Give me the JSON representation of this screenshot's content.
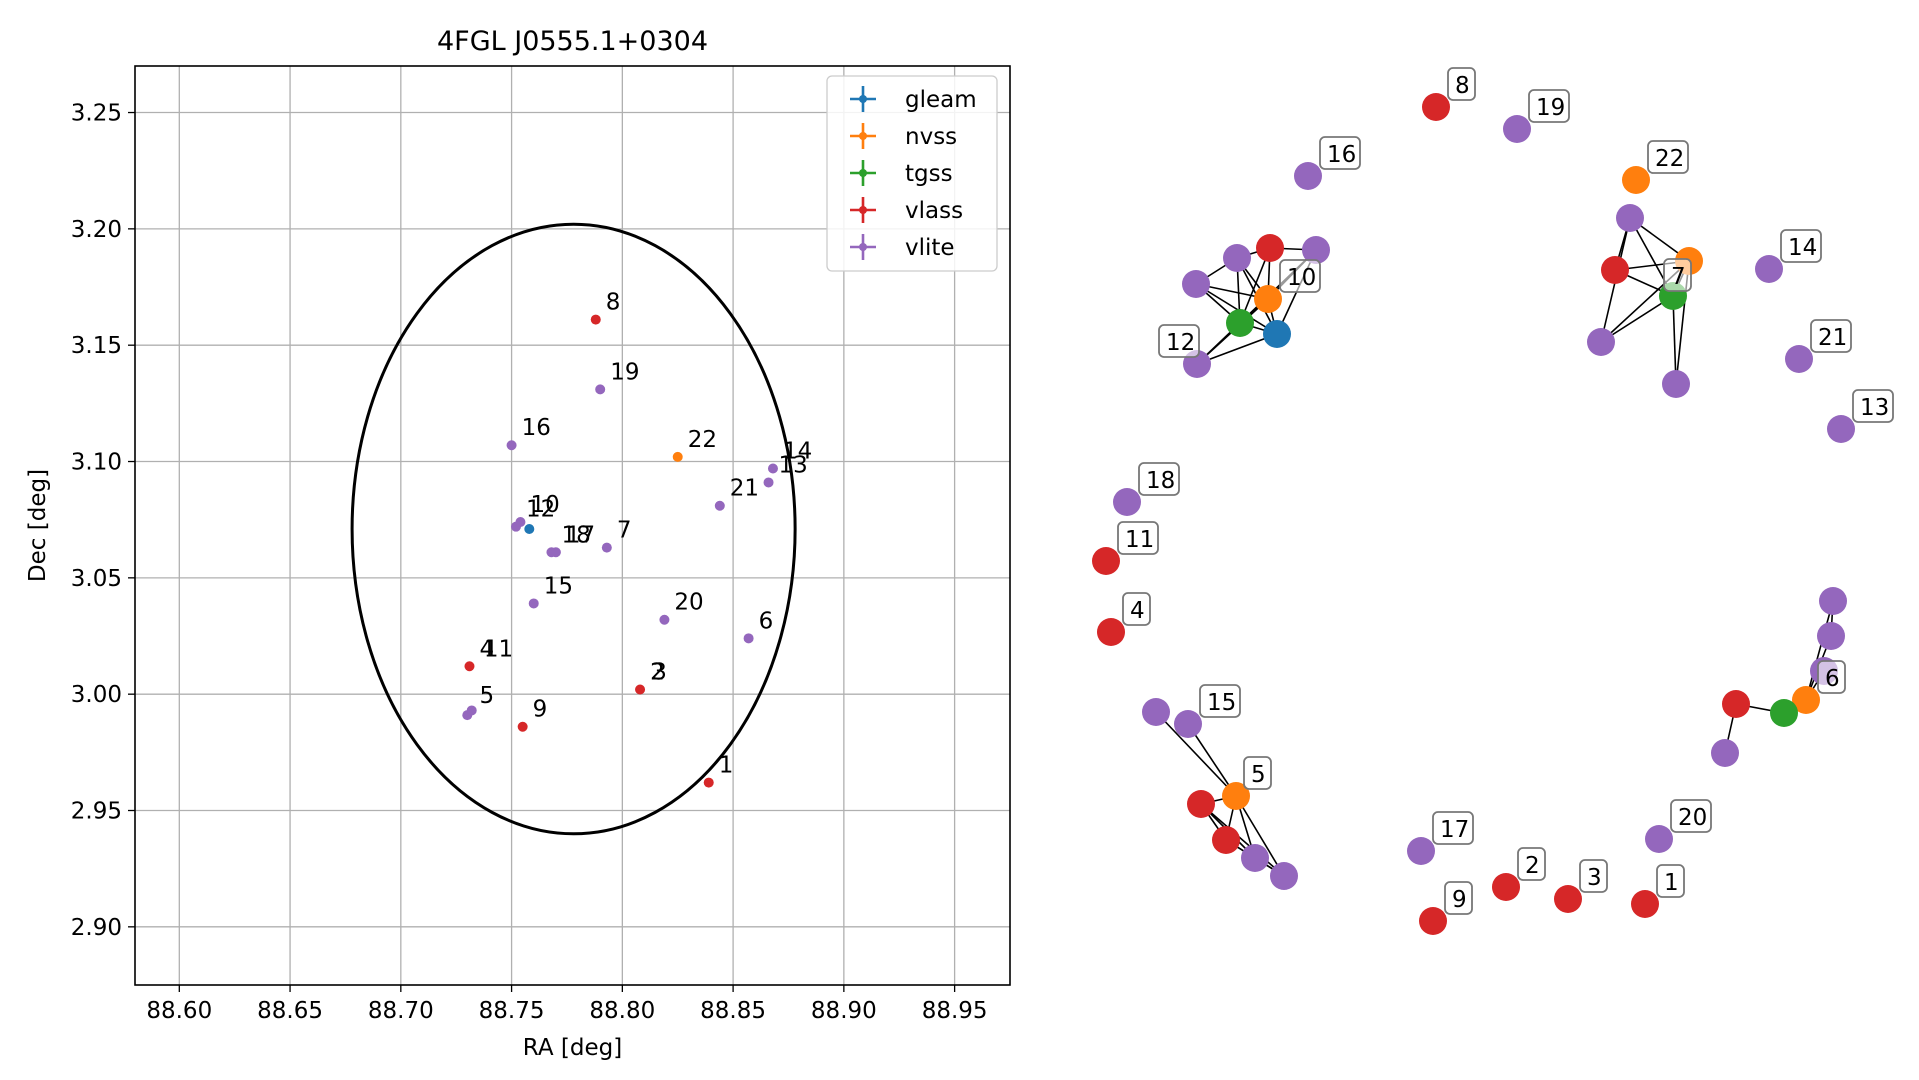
{
  "chart_data": [
    {
      "type": "scatter",
      "title": "4FGL J0555.1+0304",
      "xlabel": "RA [deg]",
      "ylabel": "Dec [deg]",
      "xlim": [
        88.58,
        88.975
      ],
      "ylim": [
        2.875,
        3.27
      ],
      "xticks": [
        88.6,
        88.65,
        88.7,
        88.75,
        88.8,
        88.85,
        88.9,
        88.95
      ],
      "yticks": [
        2.9,
        2.95,
        3.0,
        3.05,
        3.1,
        3.15,
        3.2,
        3.25
      ],
      "xtick_labels": [
        "88.60",
        "88.65",
        "88.70",
        "88.75",
        "88.80",
        "88.85",
        "88.90",
        "88.95"
      ],
      "ytick_labels": [
        "2.90",
        "2.95",
        "3.00",
        "3.05",
        "3.10",
        "3.15",
        "3.20",
        "3.25"
      ],
      "grid": true,
      "legend_position": "top-right",
      "ellipse": {
        "center": [
          88.778,
          3.071
        ],
        "semi_axis_ra": 0.1,
        "semi_axis_dec": 0.131,
        "color": "#000000"
      },
      "series": [
        {
          "name": "gleam",
          "color": "#1f77b4",
          "points": [
            {
              "x": 88.758,
              "y": 3.071
            }
          ]
        },
        {
          "name": "nvss",
          "color": "#ff7f0e",
          "points": [
            {
              "x": 88.825,
              "y": 3.102
            }
          ]
        },
        {
          "name": "tgss",
          "color": "#2ca02c",
          "points": []
        },
        {
          "name": "vlass",
          "color": "#d62728",
          "points": [
            {
              "x": 88.788,
              "y": 3.161
            },
            {
              "x": 88.731,
              "y": 3.012
            },
            {
              "x": 88.755,
              "y": 2.986
            },
            {
              "x": 88.808,
              "y": 3.002
            },
            {
              "x": 88.839,
              "y": 2.962
            }
          ]
        },
        {
          "name": "vlite",
          "color": "#9467bd",
          "points": [
            {
              "x": 88.79,
              "y": 3.131
            },
            {
              "x": 88.75,
              "y": 3.107
            },
            {
              "x": 88.868,
              "y": 3.097
            },
            {
              "x": 88.866,
              "y": 3.091
            },
            {
              "x": 88.844,
              "y": 3.081
            },
            {
              "x": 88.752,
              "y": 3.072
            },
            {
              "x": 88.754,
              "y": 3.074
            },
            {
              "x": 88.768,
              "y": 3.061
            },
            {
              "x": 88.77,
              "y": 3.061
            },
            {
              "x": 88.793,
              "y": 3.063
            },
            {
              "x": 88.76,
              "y": 3.039
            },
            {
              "x": 88.819,
              "y": 3.032
            },
            {
              "x": 88.857,
              "y": 3.024
            },
            {
              "x": 88.73,
              "y": 2.991
            },
            {
              "x": 88.732,
              "y": 2.993
            }
          ]
        }
      ],
      "labels": [
        {
          "text": "8",
          "x": 88.788,
          "y": 3.161
        },
        {
          "text": "19",
          "x": 88.79,
          "y": 3.131
        },
        {
          "text": "16",
          "x": 88.75,
          "y": 3.107
        },
        {
          "text": "22",
          "x": 88.825,
          "y": 3.102
        },
        {
          "text": "14",
          "x": 88.868,
          "y": 3.097
        },
        {
          "text": "13",
          "x": 88.866,
          "y": 3.091
        },
        {
          "text": "21",
          "x": 88.844,
          "y": 3.081
        },
        {
          "text": "12",
          "x": 88.752,
          "y": 3.072
        },
        {
          "text": "10",
          "x": 88.754,
          "y": 3.074
        },
        {
          "text": "18",
          "x": 88.768,
          "y": 3.061
        },
        {
          "text": "17",
          "x": 88.77,
          "y": 3.061
        },
        {
          "text": "7",
          "x": 88.793,
          "y": 3.063
        },
        {
          "text": "15",
          "x": 88.76,
          "y": 3.039
        },
        {
          "text": "20",
          "x": 88.819,
          "y": 3.032
        },
        {
          "text": "6",
          "x": 88.857,
          "y": 3.024
        },
        {
          "text": "4",
          "x": 88.731,
          "y": 3.012
        },
        {
          "text": "11",
          "x": 88.733,
          "y": 3.012
        },
        {
          "text": "2",
          "x": 88.808,
          "y": 3.002
        },
        {
          "text": "3",
          "x": 88.809,
          "y": 3.002
        },
        {
          "text": "5",
          "x": 88.731,
          "y": 2.992
        },
        {
          "text": "9",
          "x": 88.755,
          "y": 2.986
        },
        {
          "text": "1",
          "x": 88.839,
          "y": 2.962
        }
      ]
    },
    {
      "type": "network",
      "node_labels": [
        "8",
        "19",
        "16",
        "22",
        "14",
        "21",
        "13",
        "10",
        "12",
        "7",
        "18",
        "11",
        "4",
        "15",
        "5",
        "6",
        "17",
        "20",
        "2",
        "3",
        "1",
        "9"
      ]
    }
  ]
}
